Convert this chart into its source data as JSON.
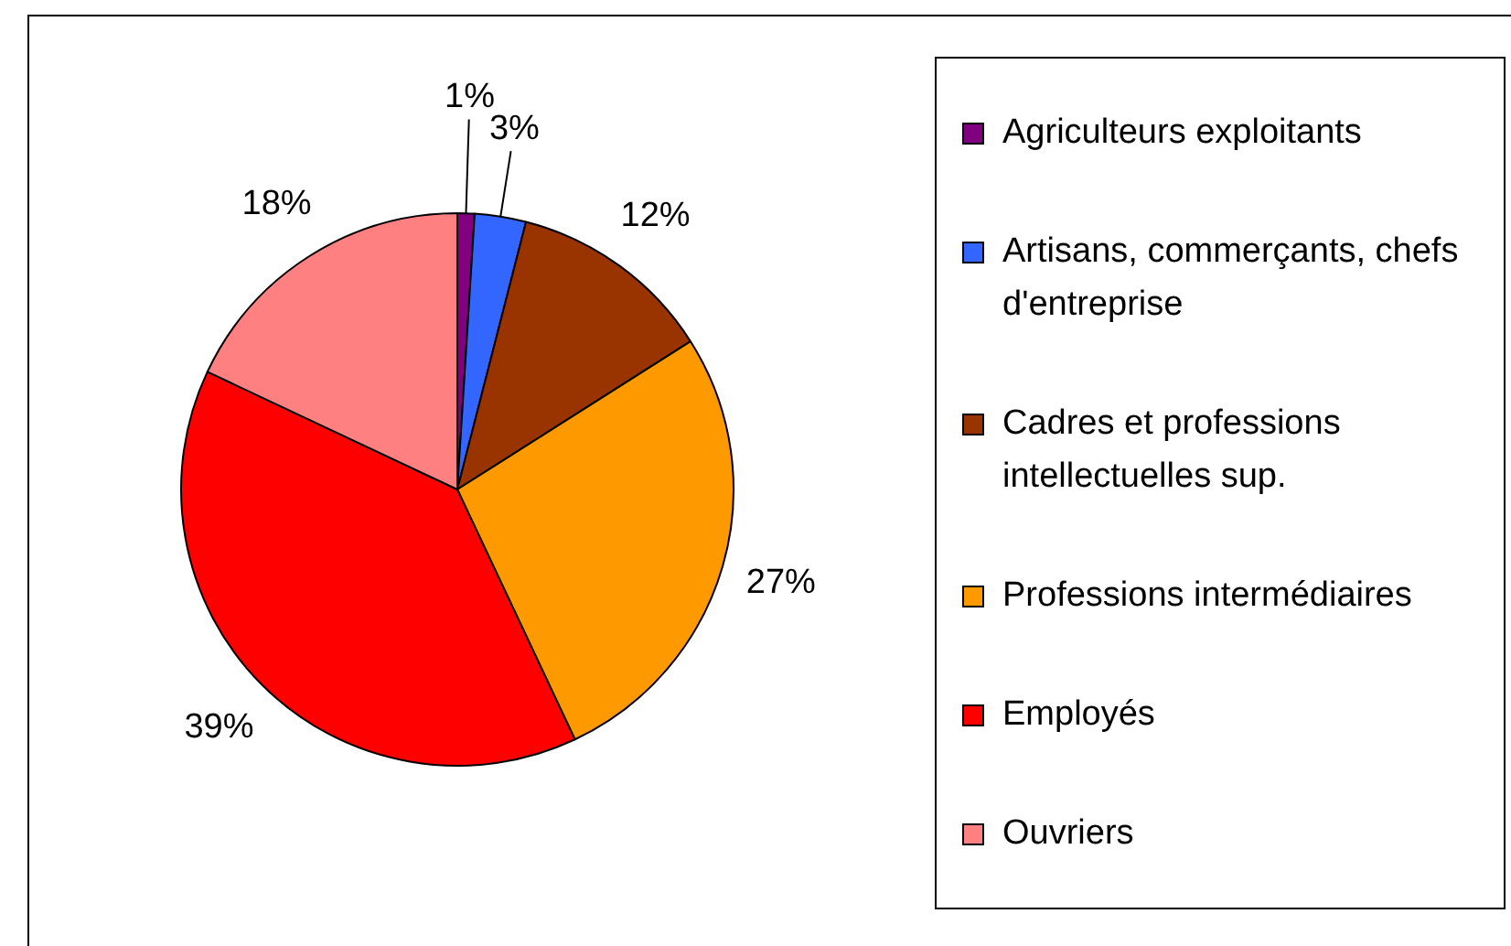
{
  "chart_data": {
    "type": "pie",
    "categories": [
      "Agriculteurs exploitants",
      "Artisans, commerçants, chefs d'entreprise",
      "Cadres et professions intellectuelles sup.",
      "Professions intermédiaires",
      "Employés",
      "Ouvriers"
    ],
    "values": [
      1,
      3,
      12,
      27,
      39,
      18
    ],
    "colors": [
      "#800080",
      "#3366ff",
      "#993300",
      "#ff9900",
      "#ff0000",
      "#ff8080"
    ],
    "value_labels": [
      "1%",
      "3%",
      "12%",
      "27%",
      "39%",
      "18%"
    ],
    "legend": "right"
  }
}
